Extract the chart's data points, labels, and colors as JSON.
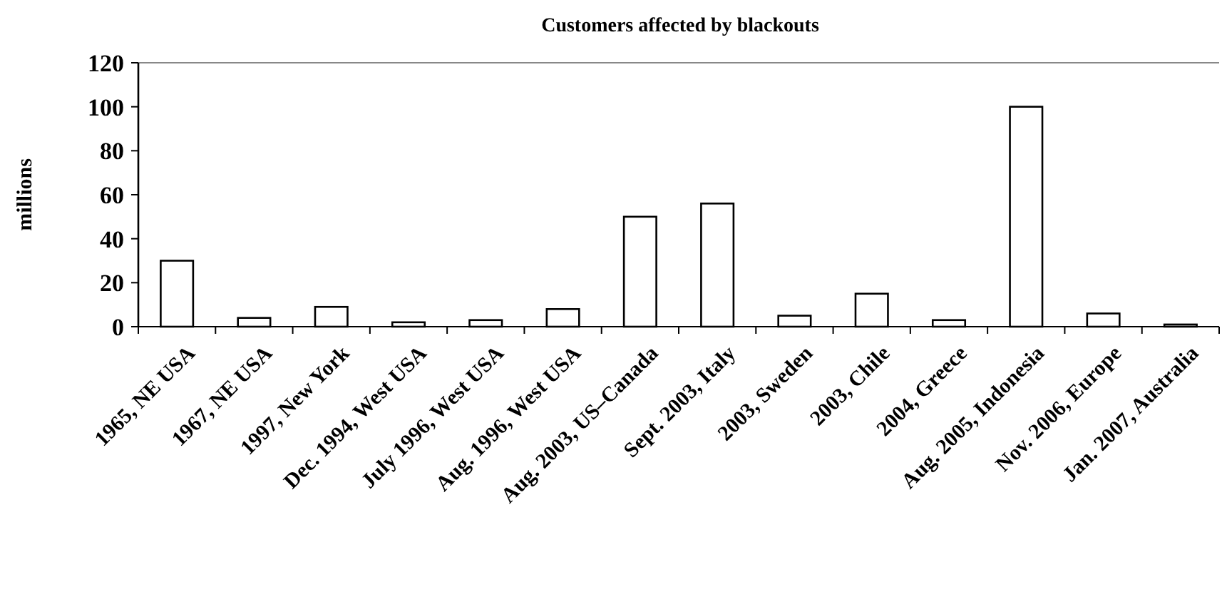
{
  "chart_data": {
    "type": "bar",
    "title": "Customers affected by blackouts",
    "ylabel": "millions",
    "categories": [
      "1965, NE USA",
      "1967, NE USA",
      "1997, New York",
      "Dec. 1994, West USA",
      "July 1996, West USA",
      "Aug. 1996, West USA",
      "Aug. 2003, US–Canada",
      "Sept. 2003, Italy",
      "2003, Sweden",
      "2003, Chile",
      "2004, Greece",
      "Aug. 2005, Indonesia",
      "Nov. 2006, Europe",
      "Jan. 2007, Australia"
    ],
    "values": [
      30,
      4,
      9,
      2,
      3,
      8,
      50,
      56,
      5,
      15,
      3,
      100,
      6,
      1
    ],
    "color": "#ffffff",
    "ylim": [
      0,
      120
    ],
    "yticks": [
      0,
      20,
      40,
      60,
      80,
      100,
      120
    ],
    "grid": false
  }
}
